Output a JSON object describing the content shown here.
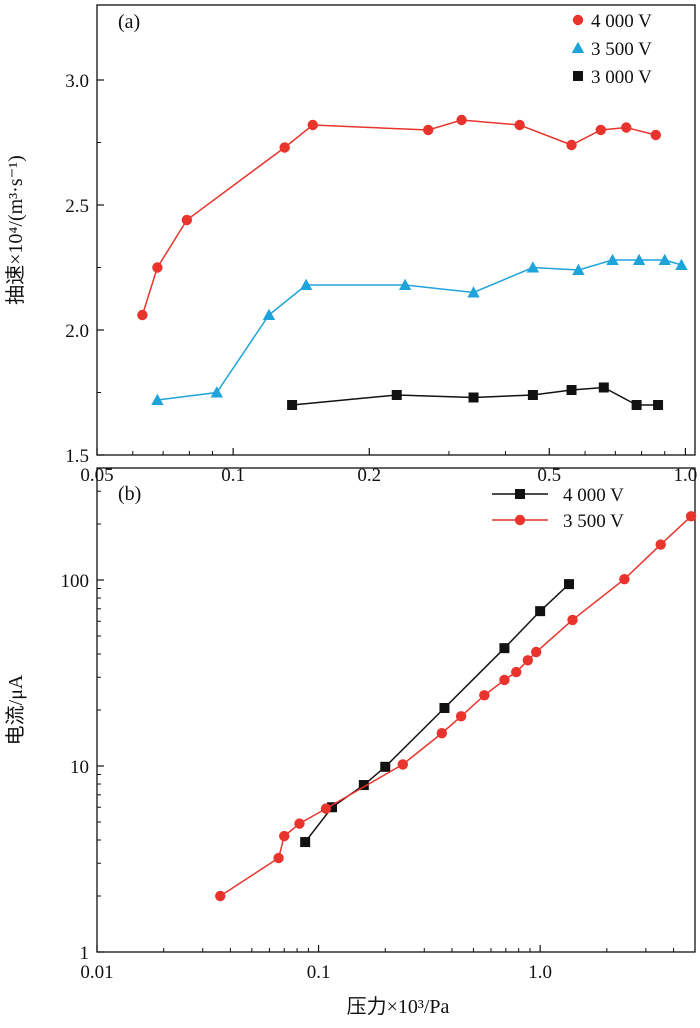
{
  "chart_data": [
    {
      "id": "a",
      "type": "line",
      "panel_label": "(a)",
      "ylabel": "抽速×10⁴/(m³·s⁻¹)",
      "xlabel": "",
      "xscale": "log",
      "xlim": [
        0.05,
        1.05
      ],
      "ylim": [
        1.5,
        3.3
      ],
      "xticks": [
        {
          "value": 0.05,
          "label": "0.05"
        },
        {
          "value": 0.1,
          "label": "0.1"
        },
        {
          "value": 0.2,
          "label": "0.2"
        },
        {
          "value": 0.5,
          "label": "0.5"
        },
        {
          "value": 1.0,
          "label": "1.0"
        }
      ],
      "yticks": [
        {
          "value": 1.5,
          "label": "1.5"
        },
        {
          "value": 2.0,
          "label": "2.0"
        },
        {
          "value": 2.5,
          "label": "2.5"
        },
        {
          "value": 3.0,
          "label": "3.0"
        }
      ],
      "legend_position": "top-right",
      "series": [
        {
          "name": "4 000 V",
          "color": "#e8342c",
          "marker": "circle",
          "x": [
            0.063,
            0.068,
            0.079,
            0.13,
            0.15,
            0.27,
            0.32,
            0.43,
            0.56,
            0.65,
            0.74,
            0.86
          ],
          "y": [
            2.06,
            2.25,
            2.44,
            2.73,
            2.82,
            2.8,
            2.84,
            2.82,
            2.74,
            2.8,
            2.81,
            2.78
          ]
        },
        {
          "name": "3 500 V",
          "color": "#1fa3db",
          "marker": "triangle",
          "x": [
            0.068,
            0.092,
            0.12,
            0.145,
            0.24,
            0.34,
            0.46,
            0.58,
            0.69,
            0.79,
            0.9,
            0.98
          ],
          "y": [
            1.72,
            1.75,
            2.06,
            2.18,
            2.18,
            2.15,
            2.25,
            2.24,
            2.28,
            2.28,
            2.28,
            2.26
          ]
        },
        {
          "name": "3 000 V",
          "color": "#111111",
          "marker": "square",
          "x": [
            0.135,
            0.23,
            0.34,
            0.46,
            0.56,
            0.66,
            0.78,
            0.87
          ],
          "y": [
            1.7,
            1.74,
            1.73,
            1.74,
            1.76,
            1.77,
            1.7,
            1.7
          ]
        }
      ]
    },
    {
      "id": "b",
      "type": "line",
      "panel_label": "(b)",
      "ylabel": "电流/μA",
      "xlabel": "压力×10³/Pa",
      "xscale": "log",
      "yscale": "log",
      "xlim": [
        0.01,
        5.0
      ],
      "ylim": [
        1,
        400
      ],
      "xticks": [
        {
          "value": 0.01,
          "label": "0.01"
        },
        {
          "value": 0.1,
          "label": "0.1"
        },
        {
          "value": 1.0,
          "label": "1.0"
        }
      ],
      "yticks": [
        {
          "value": 1,
          "label": "1"
        },
        {
          "value": 10,
          "label": "10"
        },
        {
          "value": 100,
          "label": "100"
        }
      ],
      "legend_position": "top-right",
      "series": [
        {
          "name": "4 000 V",
          "color": "#111111",
          "marker": "square",
          "x": [
            0.087,
            0.115,
            0.16,
            0.2,
            0.37,
            0.69,
            1.0,
            1.35
          ],
          "y": [
            3.9,
            6.0,
            7.9,
            9.9,
            20.5,
            43,
            68,
            95
          ]
        },
        {
          "name": "3 500 V",
          "color": "#e8342c",
          "marker": "circle",
          "x": [
            0.036,
            0.066,
            0.07,
            0.082,
            0.108,
            0.24,
            0.36,
            0.44,
            0.56,
            0.69,
            0.78,
            0.88,
            0.96,
            1.4,
            2.4,
            3.5,
            4.8
          ],
          "y": [
            2.0,
            3.2,
            4.2,
            4.9,
            5.9,
            10.2,
            15.0,
            18.5,
            24,
            29,
            32,
            37,
            41,
            61,
            101,
            155,
            220
          ]
        }
      ]
    }
  ]
}
